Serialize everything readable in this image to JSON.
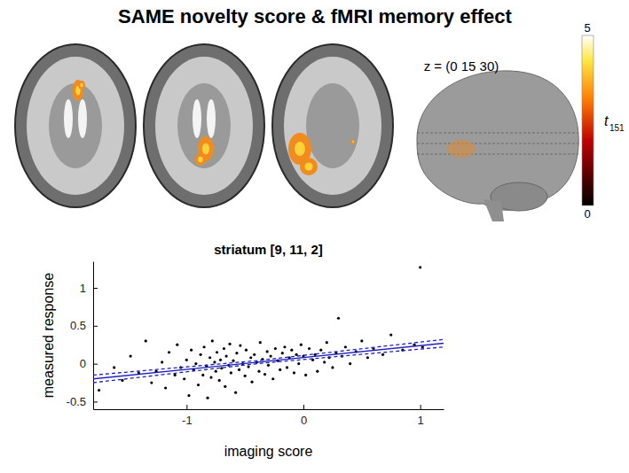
{
  "title": "SAME novelty score & fMRI memory effect",
  "brain_figure": {
    "slice_label": "z = (0 15 30)",
    "colorbar": {
      "range": [
        0,
        5
      ],
      "ticks": [
        0,
        5
      ],
      "label": "t",
      "label_subscript": "151"
    }
  },
  "chart_data": {
    "type": "scatter",
    "title": "striatum [9, 11, 2]",
    "x_label": "imaging score",
    "y_label": "measured response",
    "xlim": [
      -1.8,
      1.2
    ],
    "ylim": [
      -0.6,
      1.35
    ],
    "xticks": [
      -1,
      0,
      1
    ],
    "yticks": [
      -0.5,
      0,
      0.5,
      1
    ],
    "series": [
      {
        "type": "scatter",
        "marker": "dot",
        "color": "#000000",
        "x": [
          -1.75,
          -1.62,
          -1.55,
          -1.48,
          -1.41,
          -1.35,
          -1.3,
          -1.26,
          -1.21,
          -1.18,
          -1.15,
          -1.1,
          -1.08,
          -1.05,
          -1.02,
          -1.0,
          -0.98,
          -0.96,
          -0.94,
          -0.92,
          -0.9,
          -0.88,
          -0.86,
          -0.85,
          -0.83,
          -0.82,
          -0.8,
          -0.79,
          -0.78,
          -0.76,
          -0.75,
          -0.74,
          -0.72,
          -0.71,
          -0.7,
          -0.68,
          -0.67,
          -0.66,
          -0.64,
          -0.63,
          -0.62,
          -0.6,
          -0.58,
          -0.57,
          -0.55,
          -0.54,
          -0.52,
          -0.5,
          -0.49,
          -0.47,
          -0.45,
          -0.44,
          -0.42,
          -0.4,
          -0.38,
          -0.37,
          -0.35,
          -0.33,
          -0.31,
          -0.3,
          -0.28,
          -0.26,
          -0.24,
          -0.22,
          -0.2,
          -0.18,
          -0.16,
          -0.14,
          -0.12,
          -0.1,
          -0.08,
          -0.06,
          -0.04,
          -0.02,
          0.0,
          0.02,
          0.05,
          0.08,
          0.1,
          0.12,
          0.15,
          0.18,
          0.2,
          0.22,
          0.25,
          0.28,
          0.3,
          0.33,
          0.36,
          0.4,
          0.45,
          0.5,
          0.55,
          0.6,
          0.68,
          0.75,
          0.85,
          0.95,
          1.0,
          1.02
        ],
        "values": [
          -0.35,
          -0.05,
          -0.22,
          0.1,
          -0.12,
          0.3,
          -0.25,
          -0.1,
          0.02,
          -0.32,
          0.15,
          -0.15,
          0.25,
          -0.05,
          -0.2,
          0.05,
          -0.42,
          0.18,
          -0.08,
          0.0,
          -0.28,
          0.12,
          -0.15,
          0.22,
          -0.03,
          -0.45,
          0.08,
          -0.18,
          0.3,
          0.02,
          -0.1,
          0.15,
          -0.22,
          0.05,
          -0.06,
          0.2,
          -0.3,
          0.1,
          -0.02,
          0.26,
          -0.12,
          0.04,
          -0.38,
          0.14,
          -0.08,
          0.24,
          0.0,
          -0.16,
          0.18,
          -0.04,
          0.08,
          -0.24,
          0.12,
          0.02,
          -0.1,
          0.28,
          0.06,
          -0.14,
          0.16,
          -0.02,
          0.1,
          -0.2,
          0.2,
          0.04,
          -0.08,
          0.14,
          0.22,
          -0.05,
          0.08,
          0.18,
          -0.12,
          0.12,
          0.0,
          0.25,
          0.1,
          -0.15,
          0.2,
          0.05,
          0.12,
          -0.1,
          0.18,
          0.02,
          0.28,
          0.08,
          -0.05,
          0.14,
          0.6,
          0.1,
          0.22,
          0.0,
          0.16,
          0.3,
          0.08,
          0.2,
          0.12,
          0.38,
          0.18,
          0.25,
          1.27,
          0.22
        ]
      },
      {
        "type": "line",
        "line_style": "solid",
        "color": "#1f1fbf",
        "x": [
          -1.8,
          1.2
        ],
        "values": [
          -0.2,
          0.27
        ]
      },
      {
        "type": "line",
        "line_style": "dashed",
        "color": "#1f1fbf",
        "x": [
          -1.8,
          -0.4,
          1.2
        ],
        "values": [
          -0.15,
          0.04,
          0.32
        ]
      },
      {
        "type": "line",
        "line_style": "dashed",
        "color": "#1f1fbf",
        "x": [
          -1.8,
          -0.4,
          1.2
        ],
        "values": [
          -0.25,
          0.0,
          0.22
        ]
      }
    ]
  }
}
